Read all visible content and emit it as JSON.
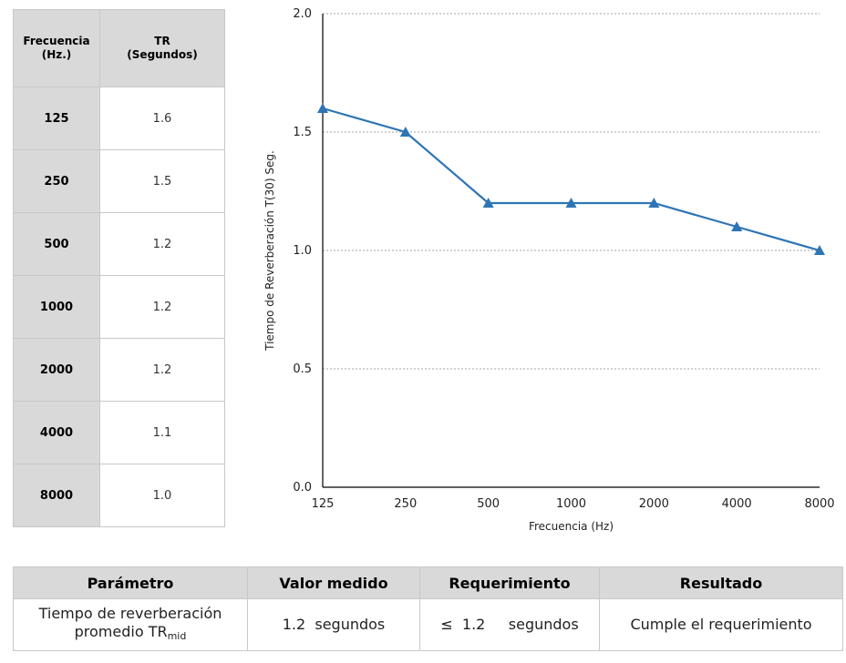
{
  "freq_table": {
    "headers": [
      "Frecuencia\n(Hz.)",
      "TR\n(Segundos)"
    ],
    "header_lines": [
      [
        "Frecuencia",
        "(Hz.)"
      ],
      [
        "TR",
        "(Segundos)"
      ]
    ],
    "rows": [
      {
        "freq": "125",
        "tr": "1.6"
      },
      {
        "freq": "250",
        "tr": "1.5"
      },
      {
        "freq": "500",
        "tr": "1.2"
      },
      {
        "freq": "1000",
        "tr": "1.2"
      },
      {
        "freq": "2000",
        "tr": "1.2"
      },
      {
        "freq": "4000",
        "tr": "1.1"
      },
      {
        "freq": "8000",
        "tr": "1.0"
      }
    ]
  },
  "chart_data": {
    "type": "line",
    "categories": [
      "125",
      "250",
      "500",
      "1000",
      "2000",
      "4000",
      "8000"
    ],
    "series": [
      {
        "values": [
          1.6,
          1.5,
          1.2,
          1.2,
          1.2,
          1.1,
          1.0
        ]
      }
    ],
    "xlabel": "Frecuencia (Hz)",
    "ylabel": "Tiempo de Reverberación T(30) Seg.",
    "ylim": [
      0,
      2
    ],
    "yticks": [
      "0.0",
      "0.5",
      "1.0",
      "1.5",
      "2.0"
    ],
    "grid": true,
    "marker": "triangle",
    "line_color": "#2e75b6"
  },
  "result_table": {
    "headers": [
      "Parámetro",
      "Valor medido",
      "Requerimiento",
      "Resultado"
    ],
    "param_line1": "Tiempo de reverberación",
    "param_line2": "promedio TR",
    "param_sub": "mid",
    "valor": "1.2  segundos",
    "requerimiento": "≤  1.2     segundos",
    "resultado": "Cumple el requerimiento"
  }
}
